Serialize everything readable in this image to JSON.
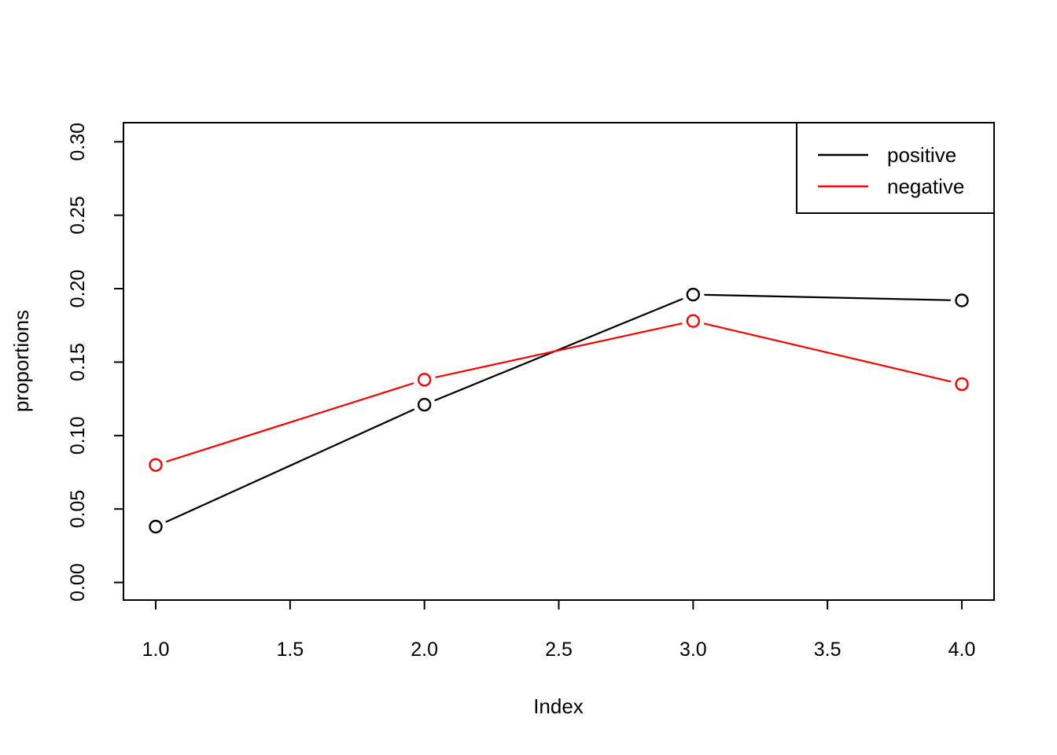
{
  "chart_data": {
    "type": "line",
    "title": "",
    "xlabel": "Index",
    "ylabel": "proportions",
    "x": [
      1,
      2,
      3,
      4
    ],
    "series": [
      {
        "name": "positive",
        "color": "#000000",
        "values": [
          0.038,
          0.121,
          0.196,
          0.192
        ]
      },
      {
        "name": "negative",
        "color": "#ff0000",
        "values": [
          0.08,
          0.138,
          0.178,
          0.135
        ]
      }
    ],
    "marker": "open-circle",
    "line_type": "segments-with-point-gaps",
    "grid": false,
    "background": "#ffffff",
    "foreground": "#000000",
    "xlim": [
      0.88,
      4.12
    ],
    "ylim": [
      -0.012,
      0.313
    ],
    "x_ticks": {
      "values": [
        1.0,
        1.5,
        2.0,
        2.5,
        3.0,
        3.5,
        4.0
      ],
      "labels": [
        "1.0",
        "1.5",
        "2.0",
        "2.5",
        "3.0",
        "3.5",
        "4.0"
      ]
    },
    "y_ticks": {
      "values": [
        0.0,
        0.05,
        0.1,
        0.15,
        0.2,
        0.25,
        0.3
      ],
      "labels": [
        "0.00",
        "0.05",
        "0.10",
        "0.15",
        "0.20",
        "0.25",
        "0.30"
      ]
    },
    "legend": {
      "position": "topright",
      "entries": [
        {
          "label": "positive",
          "color": "#000000"
        },
        {
          "label": "negative",
          "color": "#ff0000"
        }
      ]
    }
  }
}
